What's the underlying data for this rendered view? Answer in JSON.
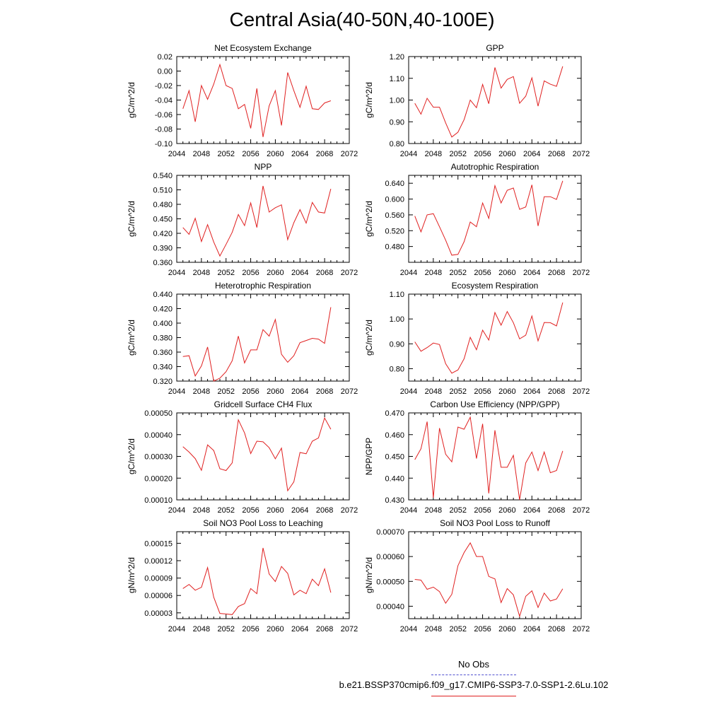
{
  "title": "Central Asia(40-50N,40-100E)",
  "legend": {
    "obs_label": "No Obs",
    "model_label": "b.e21.BSSP370cmip6.f09_g17.CMIP6-SSP3-7.0-SSP1-2.6Lu.102",
    "obs_color": "#5050d0",
    "model_color": "#e02020"
  },
  "chart_data": [
    {
      "type": "line",
      "title": "Net Ecosystem Exchange",
      "ylabel": "gC/m^2/d",
      "xlim": [
        2044,
        2072
      ],
      "xticks": [
        "2044",
        "2048",
        "2052",
        "2056",
        "2060",
        "2064",
        "2068",
        "2072"
      ],
      "ylim": [
        -0.1,
        0.02
      ],
      "yticks": [
        "0.02",
        "0.00",
        "-0.02",
        "-0.04",
        "-0.06",
        "-0.08",
        "-0.10"
      ],
      "x": [
        2045,
        2046,
        2047,
        2048,
        2049,
        2050,
        2051,
        2052,
        2053,
        2054,
        2055,
        2056,
        2057,
        2058,
        2059,
        2060,
        2061,
        2062,
        2063,
        2064,
        2065,
        2066,
        2067,
        2068,
        2069
      ],
      "values": [
        -0.052,
        -0.027,
        -0.07,
        -0.02,
        -0.039,
        -0.018,
        0.009,
        -0.02,
        -0.024,
        -0.052,
        -0.046,
        -0.079,
        -0.024,
        -0.091,
        -0.048,
        -0.027,
        -0.075,
        -0.002,
        -0.027,
        -0.05,
        -0.021,
        -0.052,
        -0.053,
        -0.044,
        -0.041
      ]
    },
    {
      "type": "line",
      "title": "GPP",
      "ylabel": "gC/m^2/d",
      "xlim": [
        2044,
        2072
      ],
      "xticks": [
        "2044",
        "2048",
        "2052",
        "2056",
        "2060",
        "2064",
        "2068",
        "2072"
      ],
      "ylim": [
        0.8,
        1.2
      ],
      "yticks": [
        "1.20",
        "1.10",
        "1.00",
        "0.90",
        "0.80"
      ],
      "x": [
        2045,
        2046,
        2047,
        2048,
        2049,
        2050,
        2051,
        2052,
        2053,
        2054,
        2055,
        2056,
        2057,
        2058,
        2059,
        2060,
        2061,
        2062,
        2063,
        2064,
        2065,
        2066,
        2067,
        2068,
        2069
      ],
      "values": [
        0.985,
        0.935,
        1.008,
        0.967,
        0.967,
        0.895,
        0.83,
        0.852,
        0.91,
        1.0,
        0.965,
        1.072,
        0.983,
        1.15,
        1.055,
        1.095,
        1.108,
        0.985,
        1.018,
        1.102,
        0.972,
        1.088,
        1.073,
        1.063,
        1.155
      ]
    },
    {
      "type": "line",
      "title": "NPP",
      "ylabel": "gC/m^2/d",
      "xlim": [
        2044,
        2072
      ],
      "xticks": [
        "2044",
        "2048",
        "2052",
        "2056",
        "2060",
        "2064",
        "2068",
        "2072"
      ],
      "ylim": [
        0.36,
        0.54
      ],
      "yticks": [
        "0.540",
        "0.510",
        "0.480",
        "0.450",
        "0.420",
        "0.390",
        "0.360"
      ],
      "x": [
        2045,
        2046,
        2047,
        2048,
        2049,
        2050,
        2051,
        2052,
        2053,
        2054,
        2055,
        2056,
        2057,
        2058,
        2059,
        2060,
        2061,
        2062,
        2063,
        2064,
        2065,
        2066,
        2067,
        2068,
        2069
      ],
      "values": [
        0.432,
        0.418,
        0.451,
        0.403,
        0.438,
        0.402,
        0.373,
        0.397,
        0.422,
        0.459,
        0.436,
        0.483,
        0.432,
        0.518,
        0.464,
        0.473,
        0.479,
        0.407,
        0.442,
        0.469,
        0.441,
        0.484,
        0.464,
        0.462,
        0.512
      ]
    },
    {
      "type": "line",
      "title": "Autotrophic Respiration",
      "ylabel": "gC/m^2/d",
      "xlim": [
        2044,
        2072
      ],
      "xticks": [
        "2044",
        "2048",
        "2052",
        "2056",
        "2060",
        "2064",
        "2068",
        "2072"
      ],
      "ylim": [
        0.44,
        0.66
      ],
      "yticks": [
        "0.640",
        "0.600",
        "0.560",
        "0.520",
        "0.480"
      ],
      "x": [
        2045,
        2046,
        2047,
        2048,
        2049,
        2050,
        2051,
        2052,
        2053,
        2054,
        2055,
        2056,
        2057,
        2058,
        2059,
        2060,
        2061,
        2062,
        2063,
        2064,
        2065,
        2066,
        2067,
        2068,
        2069
      ],
      "values": [
        0.557,
        0.517,
        0.56,
        0.563,
        0.53,
        0.496,
        0.458,
        0.46,
        0.492,
        0.542,
        0.53,
        0.59,
        0.551,
        0.634,
        0.59,
        0.622,
        0.628,
        0.574,
        0.58,
        0.636,
        0.532,
        0.606,
        0.606,
        0.599,
        0.646
      ]
    },
    {
      "type": "line",
      "title": "Heterotrophic Respiration",
      "ylabel": "gC/m^2/d",
      "xlim": [
        2044,
        2072
      ],
      "xticks": [
        "2044",
        "2048",
        "2052",
        "2056",
        "2060",
        "2064",
        "2068",
        "2072"
      ],
      "ylim": [
        0.32,
        0.44
      ],
      "yticks": [
        "0.440",
        "0.420",
        "0.400",
        "0.380",
        "0.360",
        "0.340",
        "0.320"
      ],
      "x": [
        2045,
        2046,
        2047,
        2048,
        2049,
        2050,
        2051,
        2052,
        2053,
        2054,
        2055,
        2056,
        2057,
        2058,
        2059,
        2060,
        2061,
        2062,
        2063,
        2064,
        2065,
        2066,
        2067,
        2068,
        2069
      ],
      "values": [
        0.354,
        0.355,
        0.327,
        0.341,
        0.367,
        0.32,
        0.324,
        0.333,
        0.348,
        0.382,
        0.345,
        0.363,
        0.363,
        0.391,
        0.382,
        0.405,
        0.357,
        0.346,
        0.355,
        0.373,
        0.376,
        0.379,
        0.378,
        0.372,
        0.422
      ]
    },
    {
      "type": "line",
      "title": "Ecosystem Respiration",
      "ylabel": "gC/m^2/d",
      "xlim": [
        2044,
        2072
      ],
      "xticks": [
        "2044",
        "2048",
        "2052",
        "2056",
        "2060",
        "2064",
        "2068",
        "2072"
      ],
      "ylim": [
        0.75,
        1.1
      ],
      "yticks": [
        "1.10",
        "1.00",
        "0.90",
        "0.80"
      ],
      "x": [
        2045,
        2046,
        2047,
        2048,
        2049,
        2050,
        2051,
        2052,
        2053,
        2054,
        2055,
        2056,
        2057,
        2058,
        2059,
        2060,
        2061,
        2062,
        2063,
        2064,
        2065,
        2066,
        2067,
        2068,
        2069
      ],
      "values": [
        0.908,
        0.87,
        0.885,
        0.903,
        0.897,
        0.82,
        0.782,
        0.795,
        0.84,
        0.926,
        0.876,
        0.955,
        0.915,
        1.026,
        0.975,
        1.03,
        0.985,
        0.92,
        0.935,
        1.012,
        0.912,
        0.986,
        0.985,
        0.972,
        1.066
      ]
    },
    {
      "type": "line",
      "title": "Gridcell Surface CH4 Flux",
      "ylabel": "gC/m^2/d",
      "xlim": [
        2044,
        2072
      ],
      "xticks": [
        "2044",
        "2048",
        "2052",
        "2056",
        "2060",
        "2064",
        "2068",
        "2072"
      ],
      "ylim": [
        0.0001,
        0.0005
      ],
      "yticks": [
        "0.00050",
        "0.00040",
        "0.00030",
        "0.00020",
        "0.00010"
      ],
      "x": [
        2045,
        2046,
        2047,
        2048,
        2049,
        2050,
        2051,
        2052,
        2053,
        2054,
        2055,
        2056,
        2057,
        2058,
        2059,
        2060,
        2061,
        2062,
        2063,
        2064,
        2065,
        2066,
        2067,
        2068,
        2069
      ],
      "values": [
        0.000345,
        0.00032,
        0.00029,
        0.000236,
        0.000353,
        0.000327,
        0.000243,
        0.000235,
        0.00027,
        0.000468,
        0.000408,
        0.000313,
        0.00037,
        0.000367,
        0.00034,
        0.000289,
        0.000338,
        0.000142,
        0.000183,
        0.000318,
        0.000312,
        0.00037,
        0.000385,
        0.000477,
        0.000425
      ]
    },
    {
      "type": "line",
      "title": "Carbon Use Efficiency (NPP/GPP)",
      "ylabel": "NPP/GPP",
      "xlim": [
        2044,
        2072
      ],
      "xticks": [
        "2044",
        "2048",
        "2052",
        "2056",
        "2060",
        "2064",
        "2068",
        "2072"
      ],
      "ylim": [
        0.43,
        0.47
      ],
      "yticks": [
        "0.470",
        "0.460",
        "0.450",
        "0.440",
        "0.430"
      ],
      "x": [
        2045,
        2046,
        2047,
        2048,
        2049,
        2050,
        2051,
        2052,
        2053,
        2054,
        2055,
        2056,
        2057,
        2058,
        2059,
        2060,
        2061,
        2062,
        2063,
        2064,
        2065,
        2066,
        2067,
        2068,
        2069
      ],
      "values": [
        0.4485,
        0.4535,
        0.466,
        0.431,
        0.463,
        0.451,
        0.4475,
        0.4635,
        0.4625,
        0.468,
        0.449,
        0.465,
        0.433,
        0.462,
        0.445,
        0.445,
        0.4505,
        0.43,
        0.447,
        0.452,
        0.4435,
        0.452,
        0.4425,
        0.4435,
        0.4525
      ]
    },
    {
      "type": "line",
      "title": "Soil NO3 Pool Loss to Leaching",
      "ylabel": "gN/m^2/d",
      "xlim": [
        2044,
        2072
      ],
      "xticks": [
        "2044",
        "2048",
        "2052",
        "2056",
        "2060",
        "2064",
        "2068",
        "2072"
      ],
      "ylim": [
        2e-05,
        0.00017
      ],
      "yticks": [
        "0.00015",
        "0.00012",
        "0.00009",
        "0.00006",
        "0.00003"
      ],
      "x": [
        2045,
        2046,
        2047,
        2048,
        2049,
        2050,
        2051,
        2052,
        2053,
        2054,
        2055,
        2056,
        2057,
        2058,
        2059,
        2060,
        2061,
        2062,
        2063,
        2064,
        2065,
        2066,
        2067,
        2068,
        2069
      ],
      "values": [
        7.2e-05,
        7.9e-05,
        6.9e-05,
        7.4e-05,
        0.000108,
        5.7e-05,
        2.9e-05,
        2.8e-05,
        2.7e-05,
        4.1e-05,
        4.6e-05,
        7.2e-05,
        6.3e-05,
        0.000142,
        9.7e-05,
        8.4e-05,
        0.00011,
        9.8e-05,
        6.1e-05,
        6.9e-05,
        6.3e-05,
        8.8e-05,
        7.7e-05,
        0.000106,
        6.5e-05
      ]
    },
    {
      "type": "line",
      "title": "Soil NO3 Pool Loss to Runoff",
      "ylabel": "gN/m^2/d",
      "xlim": [
        2044,
        2072
      ],
      "xticks": [
        "2044",
        "2048",
        "2052",
        "2056",
        "2060",
        "2064",
        "2068",
        "2072"
      ],
      "ylim": [
        0.00035,
        0.0007
      ],
      "yticks": [
        "0.00070",
        "0.00060",
        "0.00050",
        "0.00040"
      ],
      "x": [
        2045,
        2046,
        2047,
        2048,
        2049,
        2050,
        2051,
        2052,
        2053,
        2054,
        2055,
        2056,
        2057,
        2058,
        2059,
        2060,
        2061,
        2062,
        2063,
        2064,
        2065,
        2066,
        2067,
        2068,
        2069
      ],
      "values": [
        0.000508,
        0.000505,
        0.000468,
        0.000477,
        0.000459,
        0.000412,
        0.000448,
        0.000563,
        0.000616,
        0.000655,
        0.0006,
        0.0006,
        0.00052,
        0.00051,
        0.000415,
        0.000471,
        0.000446,
        0.000359,
        0.00044,
        0.000462,
        0.000395,
        0.000453,
        0.000421,
        0.000429,
        0.00047
      ]
    }
  ]
}
